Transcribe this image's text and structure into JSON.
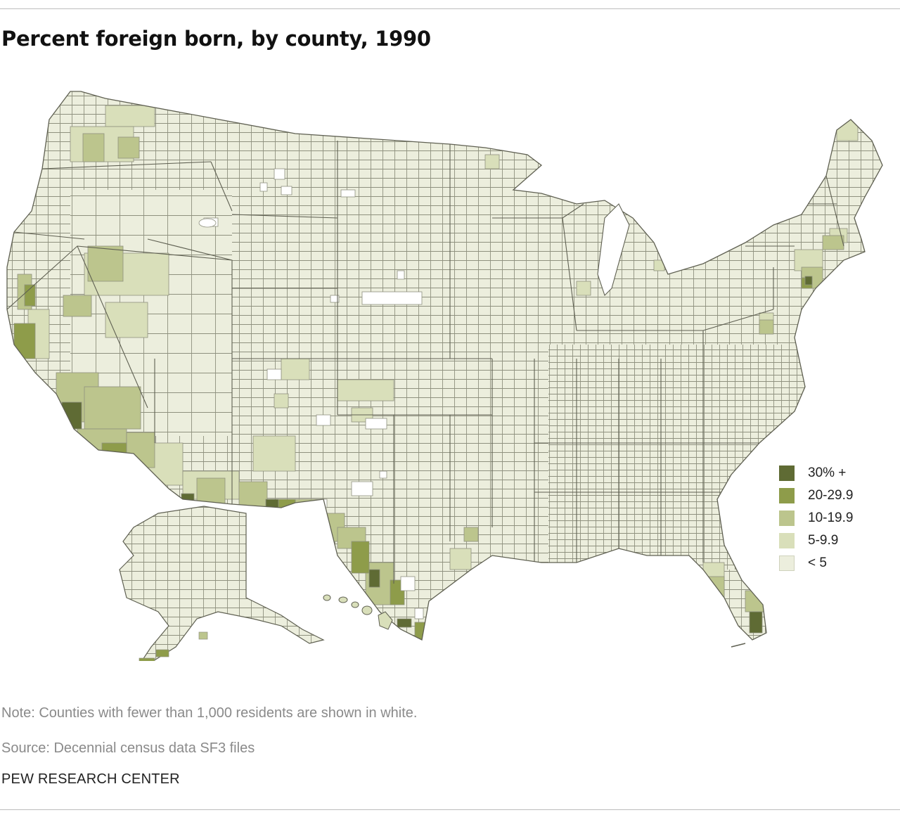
{
  "title": "Percent foreign born, by county, 1990",
  "legend": [
    {
      "label": "30% +",
      "color": "#5f6b34"
    },
    {
      "label": "20-29.9",
      "color": "#8e9c4a"
    },
    {
      "label": "10-19.9",
      "color": "#bcc58d"
    },
    {
      "label": "5-9.9",
      "color": "#d9dfba"
    },
    {
      "label": "< 5",
      "color": "#eceedd"
    }
  ],
  "colors": {
    "county_border": "#8f917f",
    "state_border": "#5f6052",
    "under_1000_residents": "#ffffff"
  },
  "map_data": {
    "type": "choropleth",
    "geography": "U.S. counties (contiguous U.S., Alaska, Hawaii)",
    "variable": "Percent foreign born",
    "bins": [
      "30% +",
      "20-29.9",
      "10-19.9",
      "5-9.9",
      "< 5"
    ],
    "highlighted_regions": [
      {
        "region": "Southern California (Los Angeles area)",
        "bin": "30% +"
      },
      {
        "region": "Miami-Dade, Florida",
        "bin": "30% +"
      },
      {
        "region": "New York City area",
        "bin": "30% +"
      },
      {
        "region": "Texas border counties (El Paso, Laredo, Rio Grande Valley)",
        "bin": "30% +"
      },
      {
        "region": "San Francisco Bay Area",
        "bin": "20-29.9"
      },
      {
        "region": "Imperial County, California",
        "bin": "20-29.9"
      },
      {
        "region": "Washington D.C. suburbs",
        "bin": "10-19.9"
      },
      {
        "region": "Central Valley, California",
        "bin": "10-19.9"
      }
    ]
  },
  "note": "Note: Counties with fewer than 1,000 residents are shown in white.",
  "source": "Source: Decennial census data SF3 files",
  "brand": "PEW RESEARCH CENTER"
}
